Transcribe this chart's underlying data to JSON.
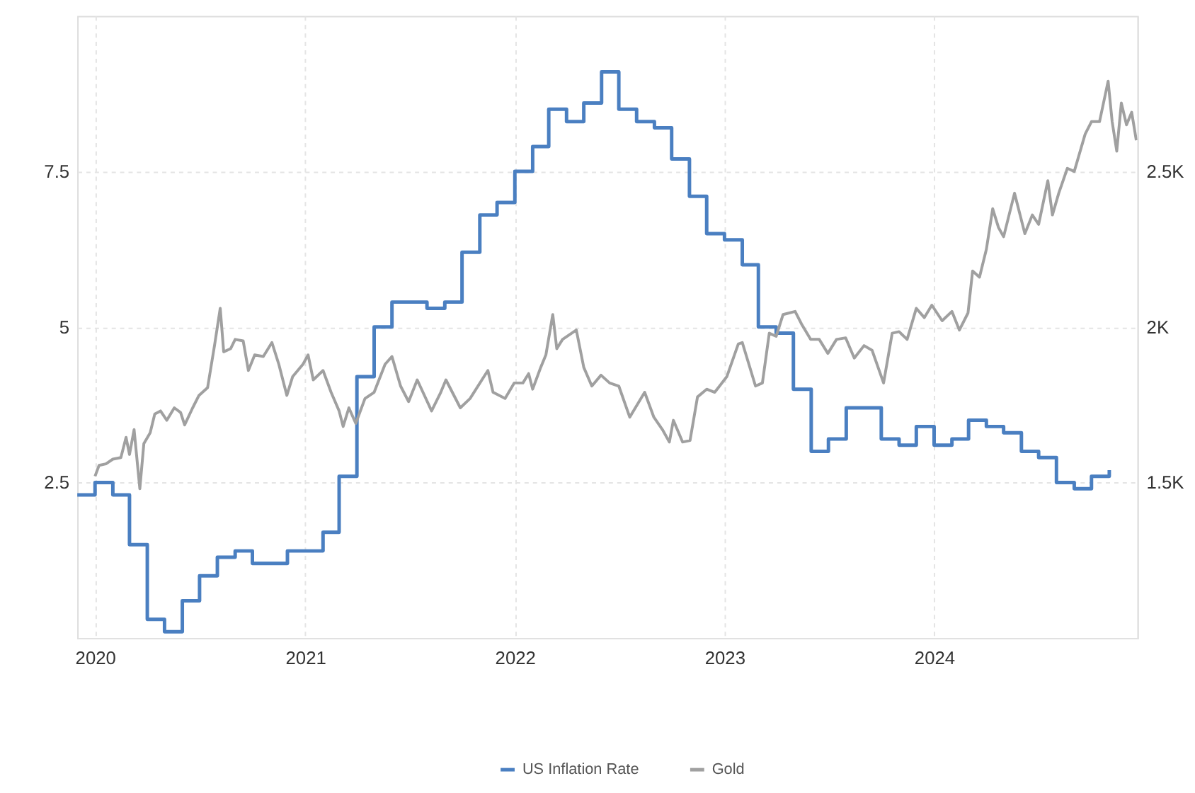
{
  "chart_data": {
    "type": "line",
    "xlim": [
      "2019-12-01",
      "2024-12-20"
    ],
    "xticks": [
      "2020",
      "2021",
      "2022",
      "2023",
      "2024"
    ],
    "ylim": [
      0,
      10
    ],
    "yticks": [
      2.5,
      5,
      7.5
    ],
    "y2lim": [
      1000,
      3000
    ],
    "y2ticks": [
      {
        "value": 1500,
        "label": "1.5K"
      },
      {
        "value": 2000,
        "label": "2K"
      },
      {
        "value": 2500,
        "label": "2.5K"
      }
    ],
    "grid": true,
    "legend": "bottom",
    "marker": "none",
    "line_style": "solid",
    "series": [
      {
        "name": "US Inflation Rate",
        "type": "step",
        "color": "#4a7fc1",
        "x": [
          "2019-12",
          "2020-01",
          "2020-02",
          "2020-03",
          "2020-04",
          "2020-05",
          "2020-06",
          "2020-07",
          "2020-08",
          "2020-09",
          "2020-10",
          "2020-11",
          "2020-12",
          "2021-01",
          "2021-02",
          "2021-03",
          "2021-04",
          "2021-05",
          "2021-06",
          "2021-07",
          "2021-08",
          "2021-09",
          "2021-10",
          "2021-11",
          "2021-12",
          "2022-01",
          "2022-02",
          "2022-03",
          "2022-04",
          "2022-05",
          "2022-06",
          "2022-07",
          "2022-08",
          "2022-09",
          "2022-10",
          "2022-11",
          "2022-12",
          "2023-01",
          "2023-02",
          "2023-03",
          "2023-04",
          "2023-05",
          "2023-06",
          "2023-07",
          "2023-08",
          "2023-09",
          "2023-10",
          "2023-11",
          "2023-12",
          "2024-01",
          "2024-02",
          "2024-03",
          "2024-04",
          "2024-05",
          "2024-06",
          "2024-07",
          "2024-08",
          "2024-09",
          "2024-10",
          "2024-11"
        ],
        "values": [
          2.3,
          2.5,
          2.3,
          1.5,
          0.3,
          0.1,
          0.6,
          1.0,
          1.3,
          1.4,
          1.2,
          1.2,
          1.4,
          1.4,
          1.7,
          2.6,
          4.2,
          5.0,
          5.4,
          5.4,
          5.3,
          5.4,
          6.2,
          6.8,
          7.0,
          7.5,
          7.9,
          8.5,
          8.3,
          8.6,
          9.1,
          8.5,
          8.3,
          8.2,
          7.7,
          7.1,
          6.5,
          6.4,
          6.0,
          5.0,
          4.9,
          4.0,
          3.0,
          3.2,
          3.7,
          3.7,
          3.2,
          3.1,
          3.4,
          3.1,
          3.2,
          3.5,
          3.4,
          3.3,
          3.0,
          2.9,
          2.5,
          2.4,
          2.6,
          2.7
        ]
      },
      {
        "name": "Gold",
        "type": "line",
        "axis": "y2",
        "color": "#a0a0a0",
        "x": [
          "2020-01-01",
          "2020-01-08",
          "2020-01-20",
          "2020-02-01",
          "2020-02-15",
          "2020-02-24",
          "2020-03-01",
          "2020-03-09",
          "2020-03-19",
          "2020-03-26",
          "2020-04-06",
          "2020-04-14",
          "2020-04-24",
          "2020-05-05",
          "2020-05-18",
          "2020-05-29",
          "2020-06-05",
          "2020-06-19",
          "2020-06-30",
          "2020-07-15",
          "2020-07-27",
          "2020-08-06",
          "2020-08-12",
          "2020-08-24",
          "2020-09-01",
          "2020-09-15",
          "2020-09-24",
          "2020-10-05",
          "2020-10-20",
          "2020-11-04",
          "2020-11-16",
          "2020-11-30",
          "2020-12-10",
          "2020-12-28",
          "2021-01-06",
          "2021-01-15",
          "2021-02-01",
          "2021-02-15",
          "2021-03-01",
          "2021-03-08",
          "2021-03-18",
          "2021-03-30",
          "2021-04-15",
          "2021-05-01",
          "2021-05-20",
          "2021-06-01",
          "2021-06-16",
          "2021-06-30",
          "2021-07-15",
          "2021-08-09",
          "2021-08-25",
          "2021-09-03",
          "2021-09-28",
          "2021-10-15",
          "2021-11-15",
          "2021-11-24",
          "2021-12-15",
          "2021-12-31",
          "2022-01-15",
          "2022-01-25",
          "2022-02-01",
          "2022-02-15",
          "2022-02-24",
          "2022-03-08",
          "2022-03-15",
          "2022-03-25",
          "2022-04-18",
          "2022-05-01",
          "2022-05-15",
          "2022-05-31",
          "2022-06-15",
          "2022-07-01",
          "2022-07-20",
          "2022-08-15",
          "2022-08-31",
          "2022-09-15",
          "2022-09-27",
          "2022-10-04",
          "2022-10-20",
          "2022-11-02",
          "2022-11-15",
          "2022-12-01",
          "2022-12-15",
          "2023-01-05",
          "2023-01-25",
          "2023-02-01",
          "2023-02-24",
          "2023-03-08",
          "2023-03-20",
          "2023-04-01",
          "2023-04-13",
          "2023-05-04",
          "2023-05-15",
          "2023-05-31",
          "2023-06-15",
          "2023-06-30",
          "2023-07-15",
          "2023-07-31",
          "2023-08-15",
          "2023-09-01",
          "2023-09-15",
          "2023-10-05",
          "2023-10-20",
          "2023-11-01",
          "2023-11-15",
          "2023-12-01",
          "2023-12-15",
          "2023-12-28",
          "2024-01-15",
          "2024-02-01",
          "2024-02-14",
          "2024-02-29",
          "2024-03-08",
          "2024-03-20",
          "2024-04-01",
          "2024-04-12",
          "2024-04-22",
          "2024-05-01",
          "2024-05-20",
          "2024-06-07",
          "2024-06-20",
          "2024-07-01",
          "2024-07-17",
          "2024-07-25",
          "2024-08-05",
          "2024-08-20",
          "2024-09-01",
          "2024-09-20",
          "2024-10-01",
          "2024-10-15",
          "2024-10-30",
          "2024-11-06",
          "2024-11-14",
          "2024-11-22",
          "2024-12-01",
          "2024-12-10",
          "2024-12-18"
        ],
        "values": [
          1520,
          1555,
          1560,
          1575,
          1580,
          1645,
          1590,
          1670,
          1480,
          1625,
          1660,
          1720,
          1730,
          1700,
          1740,
          1725,
          1685,
          1740,
          1780,
          1805,
          1940,
          2060,
          1920,
          1930,
          1960,
          1955,
          1860,
          1910,
          1905,
          1950,
          1880,
          1780,
          1840,
          1880,
          1910,
          1830,
          1860,
          1790,
          1730,
          1680,
          1740,
          1690,
          1770,
          1790,
          1880,
          1905,
          1810,
          1760,
          1830,
          1730,
          1790,
          1830,
          1740,
          1770,
          1860,
          1790,
          1770,
          1820,
          1820,
          1850,
          1800,
          1870,
          1910,
          2040,
          1930,
          1960,
          1990,
          1870,
          1810,
          1845,
          1820,
          1810,
          1710,
          1790,
          1710,
          1670,
          1630,
          1700,
          1630,
          1635,
          1775,
          1800,
          1790,
          1840,
          1945,
          1950,
          1810,
          1820,
          1980,
          1970,
          2040,
          2050,
          2010,
          1960,
          1960,
          1915,
          1960,
          1965,
          1900,
          1940,
          1925,
          1820,
          1980,
          1985,
          1960,
          2060,
          2030,
          2070,
          2020,
          2050,
          1990,
          2045,
          2180,
          2160,
          2250,
          2380,
          2320,
          2290,
          2430,
          2300,
          2360,
          2330,
          2470,
          2360,
          2430,
          2510,
          2500,
          2620,
          2660,
          2660,
          2790,
          2660,
          2565,
          2720,
          2650,
          2690,
          2600
        ]
      }
    ]
  }
}
